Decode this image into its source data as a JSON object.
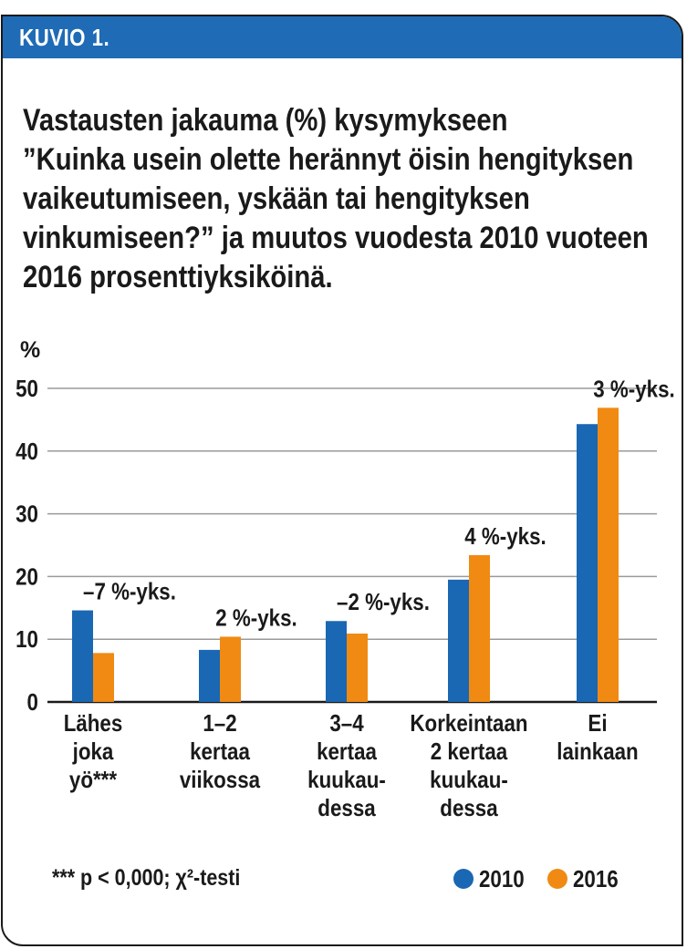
{
  "figure": {
    "label": "KUVIO 1.",
    "title_lines": [
      "Vastausten jakauma (%) kysymykseen",
      "”Kuinka usein olette herännyt öisin hengityksen",
      "vaikeutumiseen, yskään tai hengityksen",
      "vinkumiseen?” ja muutos vuodesta 2010 vuoteen",
      "2016 prosenttiyksiköinä."
    ],
    "footnote": "*** p < 0,000; χ²-testi"
  },
  "colors": {
    "header": "#1f6bb6",
    "series_2010": "#1a67b4",
    "series_2016": "#f08a12",
    "gridline": "#9a9a9a",
    "text": "#1a1a1a"
  },
  "chart_data": {
    "type": "bar",
    "title": "Vastausten jakauma (%) kysymykseen ”Kuinka usein olette herännyt öisin hengityksen vaikeutumiseen, yskään tai hengityksen vinkumiseen?” ja muutos vuodesta 2010 vuoteen 2016 prosenttiyksiköinä.",
    "ylabel": "%",
    "ylim": [
      0,
      50
    ],
    "yticks": [
      0,
      10,
      20,
      30,
      40,
      50
    ],
    "grid": true,
    "legend_position": "bottom-right",
    "categories": [
      [
        "Lähes",
        "joka",
        "yö***"
      ],
      [
        "1–2",
        "kertaa",
        "viikossa"
      ],
      [
        "3–4",
        "kertaa",
        "kuukau-",
        "dessa"
      ],
      [
        "Korkeintaan",
        "2 kertaa",
        "kuukau-",
        "dessa"
      ],
      [
        "Ei",
        "lainkaan"
      ]
    ],
    "series": [
      {
        "name": "2010",
        "values": [
          14.6,
          8.3,
          12.9,
          19.5,
          44.3
        ]
      },
      {
        "name": "2016",
        "values": [
          7.8,
          10.4,
          10.9,
          23.4,
          46.9
        ]
      }
    ],
    "change_labels": [
      "–7 %-yks.",
      "2 %-yks.",
      "–2 %-yks.",
      "4 %-yks.",
      "3 %-yks."
    ]
  }
}
